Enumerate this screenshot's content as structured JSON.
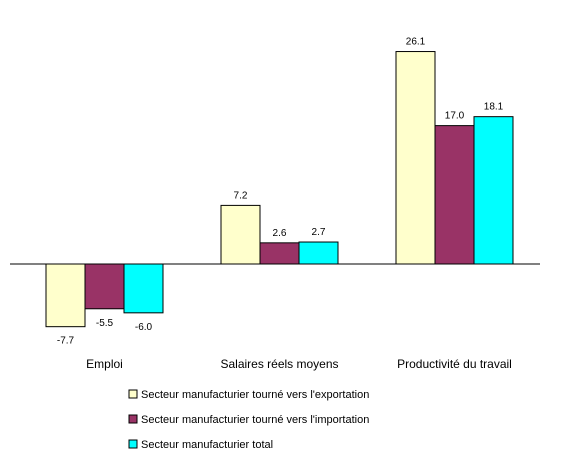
{
  "chart_data": {
    "type": "bar",
    "title": "",
    "xlabel": "",
    "ylabel": "",
    "ylim": [
      -10,
      30
    ],
    "grid": false,
    "legend_position": "bottom",
    "categories": [
      "Emploi",
      "Salaires réels moyens",
      "Productivité du travail"
    ],
    "series": [
      {
        "name": "Secteur manufacturier tourné vers l'exportation",
        "color": "#ffffcc",
        "values": [
          -7.7,
          7.2,
          26.1
        ],
        "labels": [
          "-7.7",
          "7.2",
          "26.1"
        ]
      },
      {
        "name": "Secteur manufacturier tourné vers l'importation",
        "color": "#993366",
        "values": [
          -5.5,
          2.6,
          17.0
        ],
        "labels": [
          "-5.5",
          "2.6",
          "17.0"
        ]
      },
      {
        "name": "Secteur manufacturier total",
        "color": "#00ffff",
        "values": [
          -6.0,
          2.7,
          18.1
        ],
        "labels": [
          "-6.0",
          "2.7",
          "18.1"
        ]
      }
    ]
  }
}
